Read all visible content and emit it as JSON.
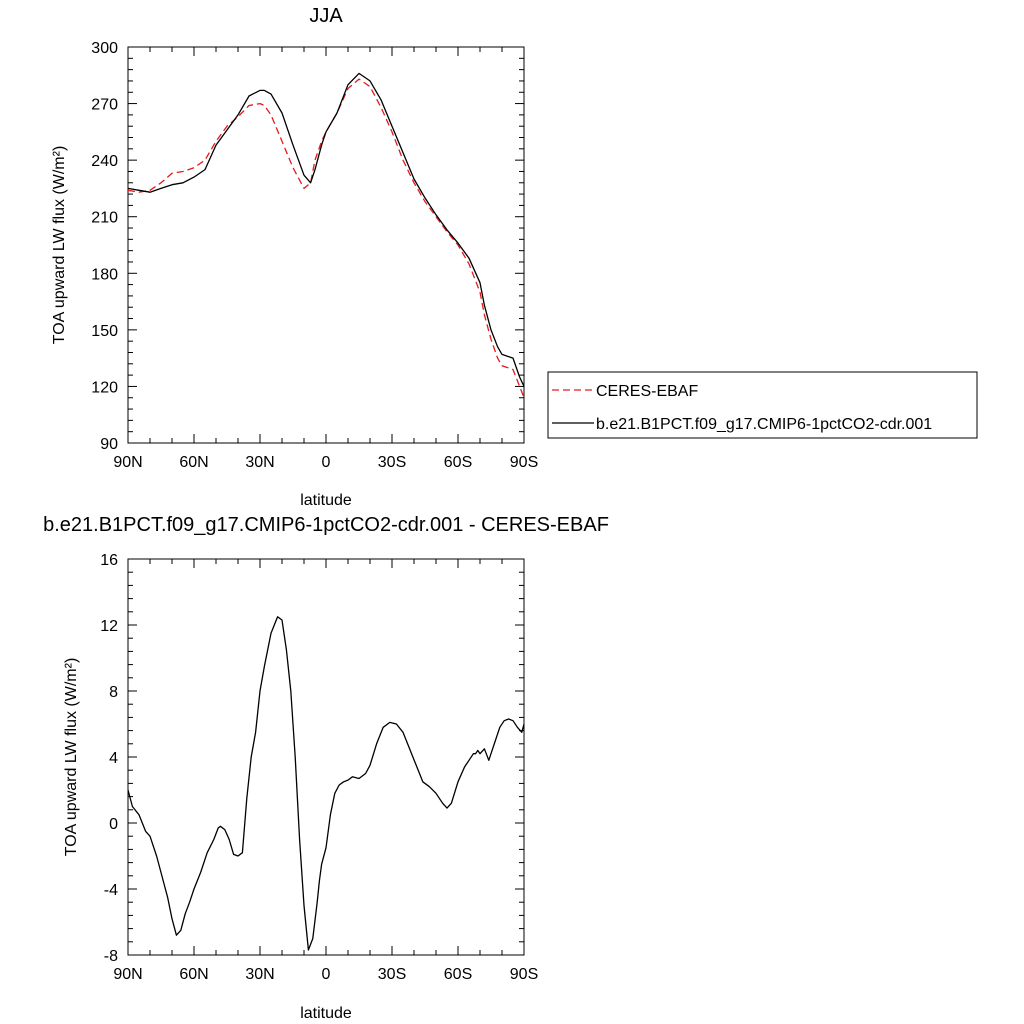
{
  "chart_data": [
    {
      "type": "line",
      "title": "JJA",
      "xlabel": "latitude",
      "ylabel": "TOA upward LW flux (W/m²)",
      "xlim": [
        90,
        -90
      ],
      "ylim": [
        90,
        300
      ],
      "xticks": [
        90,
        60,
        30,
        0,
        -30,
        -60,
        -90
      ],
      "xtick_labels": [
        "90N",
        "60N",
        "30N",
        "0",
        "30S",
        "60S",
        "90S"
      ],
      "yticks": [
        90,
        120,
        150,
        180,
        210,
        240,
        270,
        300
      ],
      "ytick_labels": [
        "90",
        "120",
        "150",
        "180",
        "210",
        "240",
        "270",
        "300"
      ],
      "grid": false,
      "legend": {
        "placement": "right",
        "entries": [
          "CERES-EBAF",
          "b.e21.B1PCT.f09_g17.CMIP6-1pctCO2-cdr.001"
        ]
      },
      "series": [
        {
          "name": "CERES-EBAF",
          "color": "#e41a1c",
          "dash": true,
          "x": [
            90,
            85,
            80,
            75,
            70,
            65,
            60,
            55,
            50,
            45,
            40,
            35,
            30,
            28,
            25,
            20,
            15,
            10,
            7,
            5,
            2,
            0,
            -5,
            -10,
            -15,
            -20,
            -25,
            -30,
            -35,
            -40,
            -45,
            -50,
            -55,
            -60,
            -65,
            -70,
            -72,
            -75,
            -78,
            -80,
            -85,
            -88,
            -90
          ],
          "y": [
            224,
            223,
            224,
            228,
            233,
            234,
            236,
            240,
            250,
            258,
            263,
            269,
            270,
            269,
            264,
            250,
            236,
            225,
            228,
            240,
            250,
            255,
            265,
            278,
            283,
            279,
            268,
            255,
            240,
            228,
            218,
            210,
            202,
            195,
            185,
            170,
            158,
            145,
            135,
            131,
            129,
            120,
            114
          ]
        },
        {
          "name": "b.e21.B1PCT.f09_g17.CMIP6-1pctCO2-cdr.001",
          "color": "#000000",
          "dash": false,
          "x": [
            90,
            85,
            80,
            75,
            70,
            65,
            60,
            55,
            50,
            45,
            40,
            35,
            30,
            28,
            25,
            20,
            15,
            10,
            7,
            5,
            2,
            0,
            -5,
            -10,
            -15,
            -20,
            -25,
            -30,
            -35,
            -40,
            -45,
            -50,
            -55,
            -60,
            -65,
            -70,
            -72,
            -75,
            -78,
            -80,
            -85,
            -88,
            -90
          ],
          "y": [
            225,
            224,
            223,
            225,
            227,
            228,
            231,
            235,
            248,
            256,
            264,
            274,
            277,
            277,
            275,
            265,
            248,
            232,
            228,
            235,
            248,
            255,
            265,
            280,
            286,
            282,
            272,
            258,
            244,
            230,
            220,
            211,
            203,
            196,
            188,
            175,
            163,
            150,
            141,
            137,
            135,
            125,
            120
          ]
        }
      ]
    },
    {
      "type": "line",
      "title": "b.e21.B1PCT.f09_g17.CMIP6-1pctCO2-cdr.001 - CERES-EBAF",
      "xlabel": "latitude",
      "ylabel": "TOA upward LW flux (W/m²)",
      "xlim": [
        90,
        -90
      ],
      "ylim": [
        -8,
        16
      ],
      "xticks": [
        90,
        60,
        30,
        0,
        -30,
        -60,
        -90
      ],
      "xtick_labels": [
        "90N",
        "60N",
        "30N",
        "0",
        "30S",
        "60S",
        "90S"
      ],
      "yticks": [
        -8,
        -4,
        0,
        4,
        8,
        12,
        16
      ],
      "ytick_labels": [
        "-8",
        "-4",
        "0",
        "4",
        "8",
        "12",
        "16"
      ],
      "grid": false,
      "series": [
        {
          "color": "#000000",
          "dash": false,
          "x": [
            90,
            88,
            85,
            82,
            80,
            77,
            75,
            72,
            70,
            68,
            66,
            64,
            62,
            60,
            57,
            54,
            51,
            49,
            48,
            46,
            44,
            42,
            40,
            38,
            36,
            34,
            32,
            30,
            28,
            25,
            22,
            20,
            18,
            16,
            14,
            12,
            10,
            8,
            6,
            4,
            3,
            2,
            0,
            -2,
            -4,
            -6,
            -8,
            -10,
            -12,
            -15,
            -18,
            -20,
            -23,
            -26,
            -29,
            -32,
            -35,
            -38,
            -41,
            -44,
            -47,
            -50,
            -53,
            -55,
            -57,
            -60,
            -63,
            -65,
            -67,
            -68,
            -69,
            -70,
            -72,
            -74,
            -75,
            -77,
            -79,
            -81,
            -83,
            -85,
            -87,
            -89,
            -90
          ],
          "y": [
            2.0,
            1.0,
            0.5,
            -0.5,
            -0.8,
            -2.0,
            -3.0,
            -4.5,
            -5.8,
            -6.8,
            -6.5,
            -5.5,
            -4.8,
            -4.0,
            -3.0,
            -1.8,
            -1.0,
            -0.3,
            -0.2,
            -0.4,
            -1.0,
            -1.9,
            -2.0,
            -1.8,
            1.5,
            4.0,
            5.5,
            8.0,
            9.5,
            11.5,
            12.5,
            12.3,
            10.5,
            8.0,
            4.0,
            -1.0,
            -5.0,
            -7.7,
            -7.0,
            -4.8,
            -3.5,
            -2.5,
            -1.5,
            0.5,
            1.8,
            2.3,
            2.5,
            2.6,
            2.8,
            2.7,
            3.0,
            3.5,
            4.8,
            5.8,
            6.1,
            6.0,
            5.5,
            4.5,
            3.5,
            2.5,
            2.2,
            1.8,
            1.2,
            0.9,
            1.2,
            2.5,
            3.4,
            3.8,
            4.2,
            4.2,
            4.4,
            4.2,
            4.5,
            3.8,
            4.2,
            5.0,
            5.8,
            6.2,
            6.3,
            6.2,
            5.8,
            5.5,
            6.0
          ]
        }
      ]
    }
  ]
}
